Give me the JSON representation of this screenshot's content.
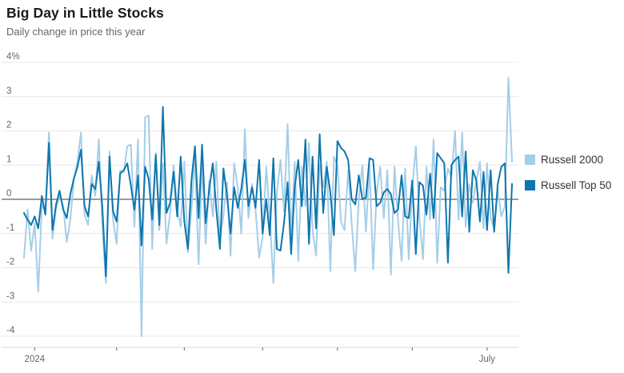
{
  "header": {
    "title": "Big Day in Little Stocks",
    "subtitle": "Daily change in price this year"
  },
  "legend": {
    "items": [
      {
        "label": "Russell 2000",
        "color": "#a5cee9"
      },
      {
        "label": "Russell Top 50",
        "color": "#0e76ad"
      }
    ]
  },
  "chart_data": {
    "type": "line",
    "title": "Big Day in Little Stocks",
    "subtitle": "Daily change in price this year",
    "unit": "percent daily change",
    "grid": "horizontal",
    "legend_position": "right",
    "ylim": [
      -4,
      4
    ],
    "y_ticks": [
      {
        "value": 4,
        "label": "4%"
      },
      {
        "value": 3,
        "label": "3"
      },
      {
        "value": 2,
        "label": "2"
      },
      {
        "value": 1,
        "label": "1"
      },
      {
        "value": 0,
        "label": "0"
      },
      {
        "value": -1,
        "label": "-1"
      },
      {
        "value": -2,
        "label": "-2"
      },
      {
        "value": -3,
        "label": "-3"
      },
      {
        "value": -4,
        "label": "-4"
      }
    ],
    "x_ticks": [
      {
        "day": 3,
        "label": "2024"
      },
      {
        "day": 26,
        "label": ""
      },
      {
        "day": 45,
        "label": ""
      },
      {
        "day": 67,
        "label": ""
      },
      {
        "day": 88,
        "label": ""
      },
      {
        "day": 109,
        "label": ""
      },
      {
        "day": 130,
        "label": "July"
      }
    ],
    "x_range_days": 138,
    "series": [
      {
        "name": "Russell 2000",
        "color": "#a5cee9",
        "values": [
          -1.7,
          -0.3,
          -1.5,
          -0.7,
          -2.7,
          -0.15,
          -0.35,
          1.95,
          -1.15,
          -0.25,
          0.1,
          -0.2,
          -1.25,
          -0.6,
          0.55,
          1.1,
          1.95,
          -0.45,
          -0.75,
          0.7,
          0.1,
          1.75,
          -0.85,
          -2.45,
          1.4,
          -0.6,
          -1.3,
          0.85,
          0.8,
          1.55,
          1.6,
          -0.8,
          1.75,
          -4.0,
          2.4,
          2.45,
          -1.45,
          1.35,
          -0.9,
          1.05,
          -1.3,
          -0.4,
          1.0,
          -0.3,
          -0.8,
          1.1,
          -1.55,
          -0.3,
          1.3,
          -1.9,
          1.05,
          -1.3,
          0.55,
          -0.5,
          1.1,
          -1.25,
          -0.45,
          0.5,
          -1.65,
          1.05,
          0.35,
          -1.0,
          2.05,
          -0.55,
          0.45,
          -0.3,
          -1.7,
          -1.1,
          0.95,
          -0.5,
          -2.45,
          0.2,
          1.15,
          -0.35,
          2.2,
          -1.1,
          1.1,
          -1.8,
          0.95,
          -0.2,
          1.65,
          -0.9,
          -1.65,
          1.0,
          0.35,
          1.1,
          -2.1,
          1.25,
          0.98,
          -0.65,
          -0.9,
          0.85,
          -0.7,
          -2.1,
          0.0,
          1.0,
          -0.95,
          1.0,
          -2.05,
          0.2,
          0.95,
          -0.55,
          0.85,
          -2.2,
          0.95,
          -0.6,
          -1.8,
          0.9,
          -1.75,
          0.3,
          1.55,
          -0.5,
          -1.75,
          0.95,
          -0.6,
          1.75,
          -1.85,
          0.35,
          0.25,
          0.9,
          0.65,
          2.0,
          -0.6,
          1.95,
          -0.8,
          0.45,
          -0.1,
          0.55,
          1.1,
          -0.85,
          1.05,
          -0.55,
          -0.85,
          0.3,
          -0.5,
          -0.2,
          3.55,
          1.1
        ]
      },
      {
        "name": "Russell Top 50",
        "color": "#0e76ad",
        "values": [
          -0.4,
          -0.6,
          -0.75,
          -0.5,
          -0.85,
          0.1,
          -0.45,
          1.65,
          -0.9,
          -0.15,
          0.25,
          -0.3,
          -0.55,
          0.15,
          0.6,
          0.95,
          1.45,
          -0.2,
          -0.5,
          0.45,
          0.3,
          1.1,
          -0.25,
          -2.25,
          1.25,
          -0.35,
          -0.65,
          0.75,
          0.85,
          1.05,
          0.4,
          -0.3,
          0.7,
          -1.35,
          0.95,
          0.6,
          -0.6,
          1.3,
          -0.75,
          2.7,
          -0.4,
          -0.1,
          0.8,
          -0.5,
          1.25,
          -0.65,
          -1.45,
          0.55,
          1.55,
          -0.55,
          1.6,
          -0.7,
          0.3,
          1.05,
          -0.3,
          -1.45,
          0.9,
          0.1,
          -1.0,
          0.35,
          -0.25,
          0.3,
          1.15,
          -0.2,
          0.35,
          -0.25,
          1.15,
          -1.0,
          0.0,
          -1.05,
          1.2,
          -1.45,
          -1.5,
          -0.7,
          0.5,
          -1.6,
          0.35,
          1.15,
          -0.2,
          1.75,
          -1.3,
          1.25,
          -0.85,
          1.9,
          -0.4,
          0.95,
          0.2,
          -1.05,
          1.7,
          1.5,
          1.4,
          1.15,
          0.0,
          -0.15,
          0.7,
          0.0,
          0.05,
          1.2,
          1.15,
          -0.2,
          -0.1,
          0.2,
          0.3,
          0.15,
          -0.4,
          -0.3,
          0.7,
          -0.5,
          -0.55,
          0.55,
          -1.6,
          0.5,
          0.4,
          -0.45,
          0.75,
          -0.55,
          1.35,
          1.2,
          1.05,
          -1.85,
          1.0,
          1.15,
          1.25,
          -0.5,
          1.4,
          -0.95,
          0.85,
          0.55,
          -0.65,
          0.8,
          -0.9,
          0.85,
          -0.95,
          0.45,
          0.95,
          1.05,
          -2.15,
          0.45
        ]
      }
    ]
  },
  "colors": {
    "background": "#ffffff",
    "gridline": "#e8e8e8",
    "zero_line": "#7c7c7c",
    "axis_line": "#d8d8d8",
    "tick": "#666666",
    "axis_text": "#666666",
    "title_text": "#1a1a1a",
    "subtitle_text": "#666666"
  }
}
